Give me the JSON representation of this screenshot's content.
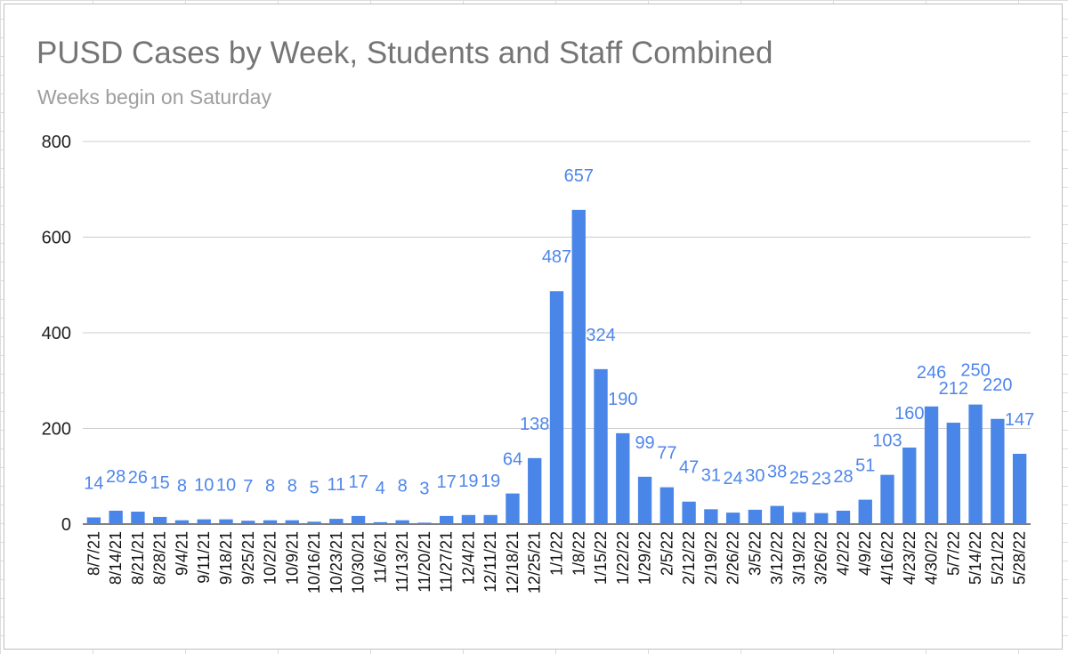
{
  "chart_data": {
    "type": "bar",
    "title": "PUSD Cases by Week, Students and Staff Combined",
    "subtitle": "Weeks begin on Saturday",
    "xlabel": "",
    "ylabel": "",
    "ylim": [
      0,
      800
    ],
    "yticks": [
      0,
      200,
      400,
      600,
      800
    ],
    "grid": true,
    "legend": "none",
    "bar_color": "#4a86e8",
    "label_color": "#4f86ec",
    "categories": [
      "8/7/21",
      "8/14/21",
      "8/21/21",
      "8/28/21",
      "9/4/21",
      "9/11/21",
      "9/18/21",
      "9/25/21",
      "10/2/21",
      "10/9/21",
      "10/16/21",
      "10/23/21",
      "10/30/21",
      "11/6/21",
      "11/13/21",
      "11/20/21",
      "11/27/21",
      "12/4/21",
      "12/11/21",
      "12/18/21",
      "12/25/21",
      "1/1/22",
      "1/8/22",
      "1/15/22",
      "1/22/22",
      "1/29/22",
      "2/5/22",
      "2/12/22",
      "2/19/22",
      "2/26/22",
      "3/5/22",
      "3/12/22",
      "3/19/22",
      "3/26/22",
      "4/2/22",
      "4/9/22",
      "4/16/22",
      "4/23/22",
      "4/30/22",
      "5/7/22",
      "5/14/22",
      "5/21/22",
      "5/28/22"
    ],
    "values": [
      14,
      28,
      26,
      15,
      8,
      10,
      10,
      7,
      8,
      8,
      5,
      11,
      17,
      4,
      8,
      3,
      17,
      19,
      19,
      64,
      138,
      487,
      657,
      324,
      190,
      99,
      77,
      47,
      31,
      24,
      30,
      38,
      25,
      23,
      28,
      51,
      103,
      160,
      246,
      212,
      250,
      220,
      147
    ]
  }
}
